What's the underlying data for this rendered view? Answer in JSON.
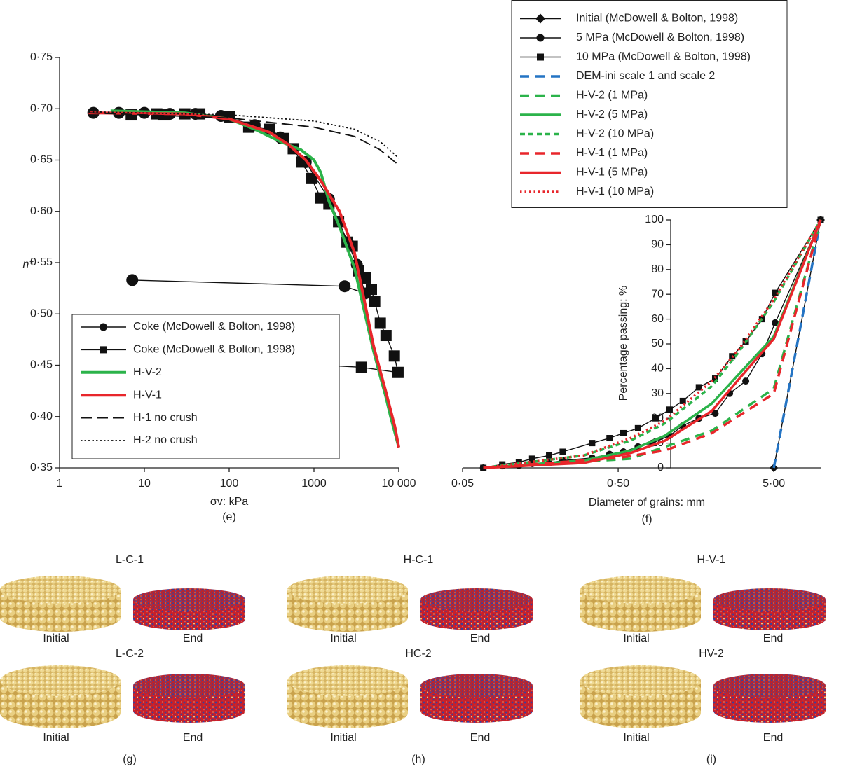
{
  "chart_data": [
    {
      "type": "line",
      "caption": "(e)",
      "xlabel": "σv: kPa",
      "ylabel": "n*",
      "xscale": "log",
      "grid": false,
      "legend": "lower left",
      "xlim": [
        1,
        10000
      ],
      "xticks": [
        1,
        10,
        100,
        1000,
        {
          "value": 10000,
          "label": "10 000"
        }
      ],
      "ylim": [
        0.35,
        0.75
      ],
      "yticks": [
        {
          "value": 0.35,
          "label": "0·35"
        },
        {
          "value": 0.4,
          "label": "0·40"
        },
        {
          "value": 0.45,
          "label": "0·45"
        },
        {
          "value": 0.5,
          "label": "0·50"
        },
        {
          "value": 0.55,
          "label": "0·55"
        },
        {
          "value": 0.6,
          "label": "0·60"
        },
        {
          "value": 0.65,
          "label": "0·65"
        },
        {
          "value": 0.7,
          "label": "0·70"
        },
        {
          "value": 0.75,
          "label": "0·75"
        }
      ],
      "series": [
        {
          "name": "Coke (McDowell & Bolton, 1998)",
          "color": "#111111",
          "line_style": "solid",
          "marker": "circle",
          "x": [
            2.5,
            5,
            10,
            20,
            40,
            80,
            200,
            400,
            800,
            1500,
            2500,
            3200,
            4000,
            2300,
            7.2
          ],
          "values": [
            0.696,
            0.696,
            0.696,
            0.695,
            0.695,
            0.693,
            0.684,
            0.672,
            0.648,
            0.612,
            0.57,
            0.548,
            0.52,
            0.527,
            0.533
          ]
        },
        {
          "name": "Coke (McDowell & Bolton, 1998)",
          "color": "#111111",
          "line_style": "solid",
          "marker": "square",
          "x": [
            7,
            14,
            17,
            30,
            45,
            100,
            170,
            300,
            440,
            570,
            710,
            940,
            1200,
            1500,
            1950,
            2450,
            2830,
            3380,
            4080,
            4760,
            5200,
            6060,
            7070,
            8870,
            9800,
            3630,
            7
          ],
          "values": [
            0.694,
            0.695,
            0.694,
            0.695,
            0.695,
            0.692,
            0.682,
            0.68,
            0.671,
            0.661,
            0.648,
            0.632,
            0.613,
            0.607,
            0.59,
            0.57,
            0.566,
            0.542,
            0.535,
            0.524,
            0.512,
            0.491,
            0.479,
            0.459,
            0.443,
            0.448,
            0.46
          ]
        },
        {
          "name": "H-V-2",
          "color": "#2bb34a",
          "line_style": "solid",
          "x": [
            4,
            30,
            100,
            200,
            400,
            700,
            1000,
            1200,
            1500,
            2000,
            3000,
            4000,
            5000,
            6000,
            7000,
            8000,
            10000
          ],
          "values": [
            0.698,
            0.696,
            0.69,
            0.68,
            0.668,
            0.66,
            0.65,
            0.638,
            0.61,
            0.585,
            0.545,
            0.5,
            0.465,
            0.44,
            0.42,
            0.4,
            0.37
          ]
        },
        {
          "name": "H-V-1",
          "color": "#e8262b",
          "line_style": "solid",
          "x": [
            2.2,
            30,
            100,
            300,
            500,
            800,
            1200,
            2000,
            3000,
            4000,
            5000,
            6000,
            7000,
            9000,
            10000
          ],
          "values": [
            0.696,
            0.695,
            0.69,
            0.677,
            0.665,
            0.65,
            0.63,
            0.6,
            0.56,
            0.51,
            0.47,
            0.445,
            0.425,
            0.39,
            0.37
          ]
        },
        {
          "name": "H-1 no crush",
          "color": "#111111",
          "line_style": "dashed",
          "x": [
            2.2,
            100,
            1000,
            3000,
            6000,
            10000
          ],
          "values": [
            0.696,
            0.691,
            0.682,
            0.673,
            0.66,
            0.645
          ]
        },
        {
          "name": "H-2 no crush",
          "color": "#111111",
          "line_style": "dotted",
          "x": [
            2.2,
            100,
            1000,
            3000,
            6000,
            10000
          ],
          "values": [
            0.697,
            0.694,
            0.688,
            0.68,
            0.668,
            0.652
          ]
        }
      ]
    },
    {
      "type": "line",
      "caption": "(f)",
      "xlabel": "Diameter of grains: mm",
      "ylabel": "Percentage passing: %",
      "xscale": "log",
      "grid": false,
      "legend": "above",
      "xlim": [
        0.05,
        10
      ],
      "xticks": [
        {
          "value": 0.05,
          "label": "0·05"
        },
        {
          "value": 0.5,
          "label": "0·50"
        },
        {
          "value": 5,
          "label": "5·00"
        }
      ],
      "ylim": [
        0,
        100
      ],
      "yticks": [
        0,
        10,
        20,
        30,
        40,
        50,
        60,
        70,
        80,
        90,
        100
      ],
      "series": [
        {
          "name": "Initial (McDowell & Bolton, 1998)",
          "color": "#111111",
          "line_style": "solid",
          "marker": "diamond",
          "x": [
            5,
            10
          ],
          "values": [
            0,
            100
          ]
        },
        {
          "name": "5 MPa (McDowell & Bolton, 1998)",
          "color": "#111111",
          "line_style": "solid",
          "marker": "circle",
          "x": [
            0.068,
            0.09,
            0.115,
            0.14,
            0.18,
            0.22,
            0.34,
            0.44,
            0.54,
            0.67,
            0.83,
            1.07,
            1.3,
            1.65,
            2.1,
            2.6,
            3.3,
            4.2,
            5.1,
            10
          ],
          "values": [
            0,
            0.8,
            1,
            1.7,
            2,
            3,
            4,
            5.5,
            6.5,
            8.5,
            10,
            13,
            17,
            20,
            22,
            30,
            35,
            46,
            58.5,
            100
          ]
        },
        {
          "name": "10 MPa (McDowell & Bolton, 1998)",
          "color": "#111111",
          "line_style": "solid",
          "marker": "square",
          "x": [
            0.068,
            0.09,
            0.115,
            0.14,
            0.18,
            0.22,
            0.34,
            0.44,
            0.54,
            0.67,
            0.87,
            1.07,
            1.3,
            1.65,
            2.1,
            2.7,
            3.3,
            4.2,
            5.1,
            10
          ],
          "values": [
            0,
            1.4,
            2.3,
            3.7,
            5,
            6.5,
            10,
            12,
            14,
            16,
            20,
            23.5,
            27,
            32.5,
            36,
            45,
            51,
            60,
            70.6,
            100
          ]
        },
        {
          "name": "DEM-ini scale 1 and scale 2",
          "color": "#2474c4",
          "line_style": "dashed",
          "x": [
            5,
            10
          ],
          "values": [
            0,
            100
          ]
        },
        {
          "name": "H-V-2 (1 MPa)",
          "color": "#2bb34a",
          "line_style": "dashed",
          "x": [
            0.068,
            0.6,
            1,
            2,
            5,
            10
          ],
          "values": [
            0,
            3.7,
            8.5,
            15,
            32,
            100
          ]
        },
        {
          "name": "H-V-2 (5 MPa)",
          "color": "#2bb34a",
          "line_style": "solid",
          "x": [
            0.068,
            0.3,
            0.6,
            1,
            2,
            3,
            5,
            10
          ],
          "values": [
            0,
            3,
            7,
            13,
            26,
            38,
            53,
            100
          ]
        },
        {
          "name": "H-V-2 (10 MPa)",
          "color": "#2bb34a",
          "line_style": "short-dashed",
          "x": [
            0.068,
            0.3,
            0.6,
            1,
            2,
            3,
            5,
            10
          ],
          "values": [
            0,
            5,
            11,
            18,
            33,
            47,
            67,
            100
          ]
        },
        {
          "name": "H-V-1 (1 MPa)",
          "color": "#e8262b",
          "line_style": "dashed",
          "x": [
            0.068,
            0.5,
            1,
            2,
            5,
            10
          ],
          "values": [
            0,
            4,
            7,
            14,
            30,
            100
          ]
        },
        {
          "name": "H-V-1 (5 MPa)",
          "color": "#e8262b",
          "line_style": "solid",
          "x": [
            0.068,
            0.3,
            0.6,
            1,
            2,
            3,
            5,
            10
          ],
          "values": [
            0,
            2,
            6,
            11,
            23,
            36,
            52,
            100
          ]
        },
        {
          "name": "H-V-1 (10 MPa)",
          "color": "#e8262b",
          "line_style": "dotted",
          "x": [
            0.068,
            0.3,
            0.6,
            1,
            2,
            3,
            5,
            10
          ],
          "values": [
            0,
            5,
            12,
            19,
            35,
            48,
            68,
            100
          ]
        }
      ]
    }
  ],
  "panels": [
    {
      "caption": "(g)",
      "rows": [
        {
          "title": "L-C-1",
          "initial": "Initial",
          "end": "End"
        },
        {
          "title": "L-C-2",
          "initial": "Initial",
          "end": "End"
        }
      ]
    },
    {
      "caption": "(h)",
      "rows": [
        {
          "title": "H-C-1",
          "initial": "Initial",
          "end": "End"
        },
        {
          "title": "HC-2",
          "initial": "Initial",
          "end": "End"
        }
      ]
    },
    {
      "caption": "(i)",
      "rows": [
        {
          "title": "H-V-1",
          "initial": "Initial",
          "end": "End"
        },
        {
          "title": "HV-2",
          "initial": "Initial",
          "end": "End"
        }
      ]
    }
  ]
}
